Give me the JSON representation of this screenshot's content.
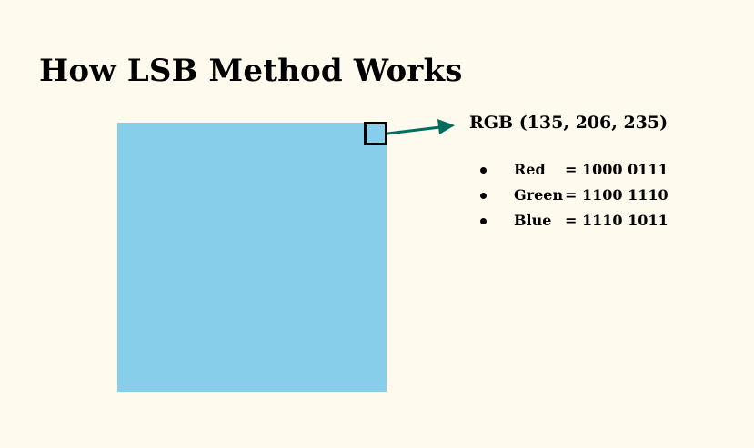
{
  "title": "How LSB Method Works",
  "colors": {
    "pixel_fill": "#87ceeb",
    "arrow": "#006e5f",
    "background": "#fffaee"
  },
  "diagram": {
    "rgb_label": "RGB (135, 206, 235)",
    "channels": [
      {
        "name": "Red",
        "value": "= 1000 0111"
      },
      {
        "name": "Green",
        "value": "= 1100 1110"
      },
      {
        "name": "Blue",
        "value": "= 1110 1011"
      }
    ]
  }
}
